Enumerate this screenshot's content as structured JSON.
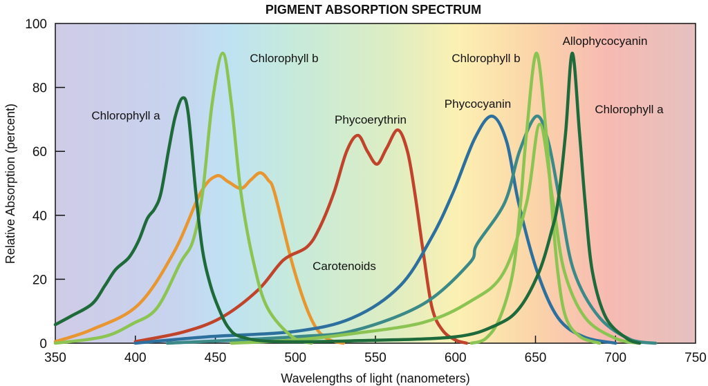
{
  "chart_data": {
    "type": "line",
    "title": "PIGMENT ABSORPTION SPECTRUM",
    "xlabel": "Wavelengths of light (nanometers)",
    "ylabel": "Relative Absorption (percent)",
    "xlim": [
      350,
      750
    ],
    "ylim": [
      0,
      100
    ],
    "xticks": [
      350,
      400,
      450,
      500,
      550,
      600,
      650,
      700,
      750
    ],
    "yticks": [
      0,
      20,
      40,
      60,
      80,
      100
    ],
    "grid": false,
    "legend": "none",
    "background": "visible-spectrum gradient",
    "series": [
      {
        "color": "#1e6a3a",
        "points": [
          [
            350,
            5.8
          ],
          [
            360,
            8.5
          ],
          [
            373,
            12.3
          ],
          [
            381,
            18
          ],
          [
            387.6,
            23
          ],
          [
            396,
            26.8
          ],
          [
            402,
            32
          ],
          [
            407.5,
            39
          ],
          [
            412,
            42
          ],
          [
            416,
            47
          ],
          [
            421,
            61
          ],
          [
            425,
            71
          ],
          [
            429.5,
            76.7
          ],
          [
            433,
            72
          ],
          [
            437.8,
            47
          ],
          [
            442,
            29
          ],
          [
            447,
            18
          ],
          [
            452,
            11
          ],
          [
            458,
            5
          ],
          [
            466,
            2
          ],
          [
            488,
            0.5
          ],
          [
            540,
            0.8
          ],
          [
            600,
            2
          ],
          [
            626,
            5.8
          ],
          [
            640,
            11
          ],
          [
            652.4,
            22.5
          ],
          [
            660,
            35
          ],
          [
            664,
            44
          ],
          [
            668.8,
            65.7
          ],
          [
            673,
            90.7
          ],
          [
            677.5,
            65.7
          ],
          [
            681,
            44
          ],
          [
            685.5,
            22.5
          ],
          [
            694,
            8
          ],
          [
            707,
            1.5
          ],
          [
            715,
            0
          ]
        ]
      },
      {
        "color": "#8cc453",
        "points": [
          [
            350,
            0
          ],
          [
            380,
            2
          ],
          [
            398,
            6
          ],
          [
            413.5,
            11
          ],
          [
            428,
            25
          ],
          [
            436,
            32
          ],
          [
            442,
            47
          ],
          [
            448,
            75
          ],
          [
            454.6,
            90.7
          ],
          [
            460,
            75
          ],
          [
            466,
            47
          ],
          [
            474,
            25
          ],
          [
            482.6,
            11
          ],
          [
            498,
            2
          ],
          [
            510,
            0
          ]
        ]
      },
      {
        "color": "#e8962f",
        "points": [
          [
            350,
            0.5
          ],
          [
            373,
            4.3
          ],
          [
            401.8,
            12
          ],
          [
            424.7,
            29
          ],
          [
            440.7,
            47
          ],
          [
            450.6,
            52.3
          ],
          [
            458,
            50.5
          ],
          [
            466,
            48.4
          ],
          [
            472,
            51
          ],
          [
            478,
            53.3
          ],
          [
            483,
            51
          ],
          [
            487,
            47
          ],
          [
            498,
            25
          ],
          [
            507,
            11
          ],
          [
            514,
            4
          ],
          [
            521.5,
            1
          ],
          [
            530,
            0
          ]
        ]
      },
      {
        "color": "#c0432b",
        "points": [
          [
            400,
            0.5
          ],
          [
            430,
            3.5
          ],
          [
            453.7,
            8
          ],
          [
            476.6,
            16.6
          ],
          [
            492.5,
            26
          ],
          [
            507,
            30
          ],
          [
            515,
            36
          ],
          [
            524,
            47
          ],
          [
            532,
            60
          ],
          [
            539,
            65
          ],
          [
            545,
            60
          ],
          [
            551,
            56
          ],
          [
            557,
            61
          ],
          [
            564,
            66.7
          ],
          [
            570,
            60
          ],
          [
            574.6,
            47
          ],
          [
            580,
            28
          ],
          [
            585.4,
            11
          ],
          [
            592,
            4
          ],
          [
            600,
            1
          ],
          [
            607,
            0
          ]
        ]
      },
      {
        "color": "#2d6f9d",
        "points": [
          [
            400,
            0
          ],
          [
            445,
            2
          ],
          [
            500,
            3.7
          ],
          [
            536,
            8
          ],
          [
            565.5,
            18
          ],
          [
            585,
            33
          ],
          [
            598.4,
            47
          ],
          [
            612,
            64
          ],
          [
            622.8,
            71
          ],
          [
            632,
            63
          ],
          [
            639.4,
            44
          ],
          [
            651,
            22.5
          ],
          [
            664,
            8
          ],
          [
            680,
            2
          ],
          [
            700,
            0
          ]
        ]
      },
      {
        "color": "#3b8a88",
        "points": [
          [
            420,
            0
          ],
          [
            500,
            2
          ],
          [
            537,
            4
          ],
          [
            580,
            12.3
          ],
          [
            608.7,
            25
          ],
          [
            613.5,
            31
          ],
          [
            630.8,
            44
          ],
          [
            640,
            60
          ],
          [
            650.6,
            71
          ],
          [
            658,
            63
          ],
          [
            665.4,
            44
          ],
          [
            674,
            22.5
          ],
          [
            690,
            8
          ],
          [
            710,
            1
          ],
          [
            725,
            0
          ]
        ]
      },
      {
        "color": "#8cc453",
        "points": [
          [
            460,
            0
          ],
          [
            500,
            1
          ],
          [
            536,
            3
          ],
          [
            580,
            6.5
          ],
          [
            609,
            13
          ],
          [
            630,
            22
          ],
          [
            644.5,
            44
          ],
          [
            652.7,
            68.5
          ],
          [
            661,
            44
          ],
          [
            668,
            22.5
          ],
          [
            681,
            8
          ],
          [
            700,
            1.5
          ],
          [
            715,
            0
          ]
        ]
      },
      {
        "color": "#8cc453",
        "points": [
          [
            610,
            0
          ],
          [
            619,
            1.5
          ],
          [
            627.8,
            8
          ],
          [
            636,
            22.5
          ],
          [
            640.7,
            44
          ],
          [
            644.4,
            65.7
          ],
          [
            650.6,
            90.7
          ],
          [
            656.7,
            65.7
          ],
          [
            660,
            44
          ],
          [
            664,
            22
          ],
          [
            669,
            8
          ],
          [
            678,
            2
          ],
          [
            690,
            0
          ]
        ]
      }
    ],
    "annotations": [
      "Chlorophyll a",
      "Chlorophyll b",
      "Phycoerythrin",
      "Carotenoids",
      "Phycocyanin",
      "Chlorophyll b",
      "Allophycocyanin",
      "Chlorophyll a"
    ]
  }
}
